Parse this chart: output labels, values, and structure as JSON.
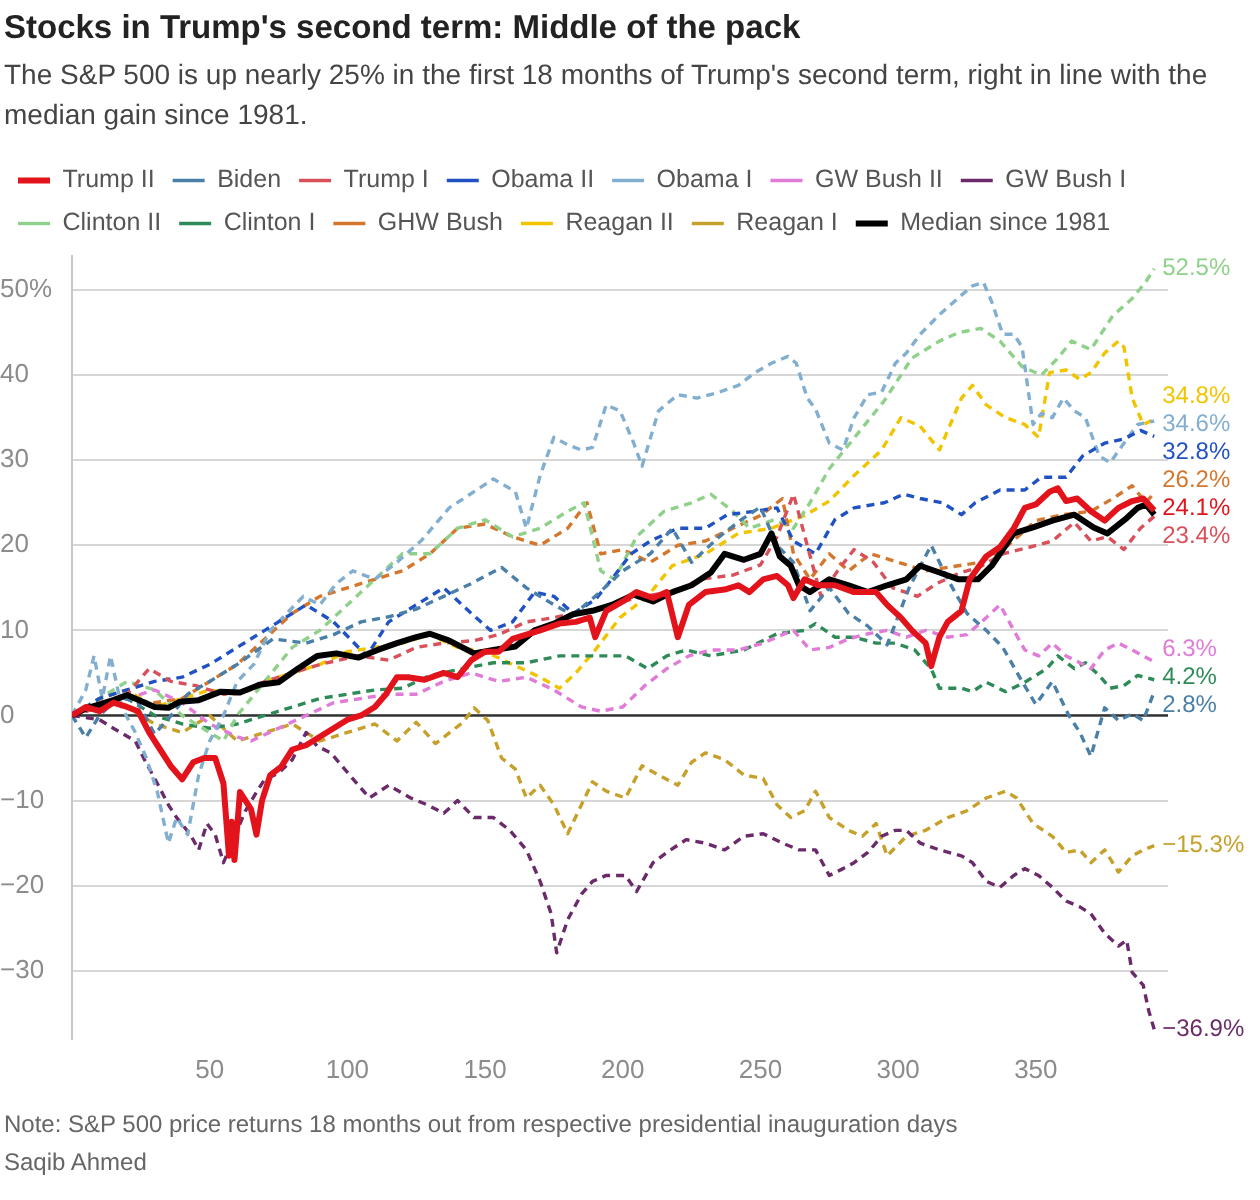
{
  "chart_data": {
    "type": "line",
    "title": "Stocks in Trump's second term: Middle of the pack",
    "subtitle": "The S&P 500 is up nearly 25% in the first 18 months of Trump's second term, right in line with the median gain since 1981.",
    "annotations": [
      "Note: S&P 500 price returns 18 months out from respective presidential inauguration days",
      "Saqib Ahmed"
    ],
    "xlim": [
      0,
      398
    ],
    "xticks": [
      50,
      100,
      150,
      200,
      250,
      300,
      350
    ],
    "ylim": [
      -38,
      54
    ],
    "yticks": [
      {
        "value": 50,
        "label": "50%"
      },
      40,
      30,
      20,
      10,
      0,
      {
        "value": -10,
        "label": "−10"
      },
      {
        "value": -20,
        "label": "−20"
      },
      {
        "value": -30,
        "label": "−30"
      }
    ],
    "grid": "y",
    "legend": "top",
    "line_style": "dashed",
    "ref_lines": [
      {
        "axis": "y",
        "value": 0,
        "color": "#333333"
      }
    ],
    "series": [
      {
        "name": "Trump II",
        "color": "#e3131b",
        "line_style": "solid",
        "x": [
          0,
          5,
          10,
          15,
          20,
          24,
          28,
          32,
          36,
          40,
          44,
          48,
          52,
          55,
          57,
          58,
          59,
          61,
          65,
          67,
          69,
          72,
          76,
          80,
          85,
          90,
          95,
          100,
          105,
          110,
          114,
          118,
          122,
          128,
          135,
          140,
          145,
          150,
          155,
          160,
          165,
          170,
          177,
          183,
          188,
          190,
          194,
          200,
          205,
          211,
          216,
          220,
          224,
          230,
          237,
          242,
          246,
          251,
          256,
          260,
          262,
          266,
          271,
          277,
          284,
          292,
          296,
          301,
          305,
          310,
          312,
          315,
          318,
          323,
          326,
          332,
          337,
          342,
          346,
          350,
          355,
          358,
          361,
          365,
          370,
          375,
          380,
          385,
          389,
          393
        ],
        "values": [
          0,
          1,
          0.5,
          1.5,
          1,
          0.5,
          -2,
          -4,
          -6,
          -7.5,
          -5.5,
          -5,
          -5,
          -8,
          -16.5,
          -12.5,
          -17,
          -9,
          -11,
          -14,
          -10,
          -7,
          -6,
          -4,
          -3.5,
          -2.5,
          -1.5,
          -0.5,
          0,
          1,
          2.5,
          4.5,
          4.5,
          4.2,
          5,
          4.5,
          6.5,
          7.5,
          7.5,
          9,
          9.5,
          10,
          10.8,
          11,
          11.5,
          9.2,
          12.3,
          13.4,
          14.5,
          13.8,
          14.5,
          9.2,
          13,
          14.5,
          14.8,
          15.3,
          14.5,
          16,
          16.4,
          15.3,
          13.8,
          16,
          15.3,
          15.3,
          14.5,
          14.5,
          13,
          11.5,
          10,
          8.5,
          5.8,
          9.2,
          11,
          12.3,
          16,
          18.7,
          19.8,
          22,
          24.4,
          24.8,
          26.3,
          26.7,
          25.2,
          25.5,
          24,
          22.9,
          24.4,
          25.2,
          25.5,
          24.1
        ],
        "value_labels": [
          null,
          null,
          null,
          null,
          null,
          null,
          null,
          null,
          null,
          null,
          null,
          null,
          null,
          null,
          null,
          null,
          null,
          null,
          null,
          null,
          null,
          null,
          null,
          null,
          null,
          null,
          null,
          null,
          null,
          null,
          null,
          null,
          null,
          null,
          null,
          null,
          null,
          null,
          null,
          null,
          null,
          null,
          null,
          null,
          null,
          null,
          null,
          null,
          null,
          null,
          null,
          null,
          null,
          null,
          null,
          null,
          null,
          null,
          null,
          null,
          null,
          null,
          null,
          null,
          null,
          null,
          null,
          null,
          null,
          null,
          null,
          null,
          null,
          null,
          null,
          null,
          null,
          null,
          null,
          null,
          null,
          null,
          null,
          null,
          null,
          null,
          null,
          null,
          null,
          "24.1%"
        ]
      },
      {
        "name": "Biden",
        "color": "#4a7fa8",
        "x": [
          0,
          5,
          10,
          17,
          24,
          30,
          36,
          42,
          50,
          60,
          73,
          85,
          95,
          105,
          115,
          125,
          135,
          145,
          156,
          165,
          175,
          182,
          190,
          200,
          210,
          218,
          225,
          235,
          243,
          250,
          256,
          262,
          268,
          275,
          282,
          289,
          296,
          304,
          312,
          318,
          325,
          332,
          338,
          345,
          350,
          356,
          362,
          366,
          370,
          375,
          380,
          385,
          389,
          393
        ],
        "values": [
          0,
          -2.6,
          0,
          2.2,
          1.5,
          -2.2,
          0,
          2.5,
          4,
          6,
          9,
          8.5,
          9.5,
          11,
          11.6,
          12.5,
          14,
          15.5,
          17.4,
          15,
          13,
          11.8,
          14,
          17,
          19,
          22,
          18,
          21,
          23,
          24.5,
          20,
          18,
          12.3,
          15,
          12,
          10.5,
          8.3,
          15,
          20,
          16,
          12,
          10,
          8,
          4,
          1.3,
          4,
          0,
          -2,
          -4.8,
          0.9,
          -0.6,
          0.2,
          -0.6,
          2.8
        ],
        "value_labels": [
          null,
          null,
          null,
          null,
          null,
          null,
          null,
          null,
          null,
          null,
          null,
          null,
          null,
          null,
          null,
          null,
          null,
          null,
          null,
          null,
          null,
          null,
          null,
          null,
          null,
          null,
          null,
          null,
          null,
          null,
          null,
          null,
          null,
          null,
          null,
          null,
          null,
          null,
          null,
          null,
          null,
          null,
          null,
          null,
          null,
          null,
          null,
          null,
          null,
          null,
          null,
          null,
          null,
          "2.8%"
        ]
      },
      {
        "name": "Trump I",
        "color": "#d9505a",
        "x": [
          0,
          10,
          20,
          28,
          36,
          45,
          55,
          62,
          70,
          80,
          90,
          104,
          115,
          125,
          135,
          146,
          155,
          165,
          175,
          187,
          196,
          207,
          218,
          228,
          240,
          250,
          256,
          262,
          267,
          272,
          278,
          284,
          291,
          298,
          307,
          314,
          322,
          330,
          338,
          348,
          356,
          364,
          370,
          376,
          382,
          388,
          393
        ],
        "values": [
          0,
          1,
          2.5,
          5.5,
          4,
          3.5,
          2.5,
          2.6,
          4,
          5,
          6,
          7,
          6.5,
          8,
          8.5,
          8.8,
          9.5,
          11,
          11.5,
          12.3,
          13,
          14,
          14.5,
          16,
          16.5,
          17.7,
          21,
          26,
          20,
          14,
          17,
          19.5,
          18,
          15,
          14,
          15.5,
          16.7,
          17.5,
          19,
          19.8,
          20.5,
          22.7,
          20.5,
          21,
          19.5,
          22,
          23.4
        ],
        "value_labels": [
          null,
          null,
          null,
          null,
          null,
          null,
          null,
          null,
          null,
          null,
          null,
          null,
          null,
          null,
          null,
          null,
          null,
          null,
          null,
          null,
          null,
          null,
          null,
          null,
          null,
          null,
          null,
          null,
          null,
          null,
          null,
          null,
          null,
          null,
          null,
          null,
          null,
          null,
          null,
          null,
          null,
          null,
          null,
          null,
          null,
          null,
          "23.4%"
        ]
      },
      {
        "name": "Obama II",
        "color": "#2152c4",
        "x": [
          0,
          10,
          20,
          30,
          40,
          50,
          60,
          70,
          80,
          85,
          95,
          107,
          115,
          125,
          135,
          145,
          152,
          160,
          168,
          175,
          182,
          190,
          196,
          203,
          210,
          220,
          230,
          238,
          248,
          256,
          262,
          270,
          277,
          284,
          295,
          302,
          308,
          316,
          323,
          328,
          337,
          346,
          352,
          361,
          367,
          375,
          382,
          388,
          393
        ],
        "values": [
          0,
          2,
          3,
          4,
          4.5,
          6,
          8,
          10,
          12,
          13,
          11,
          7,
          11,
          13,
          15,
          12,
          10,
          11,
          14.5,
          14,
          12,
          13.6,
          16,
          19,
          20.5,
          22,
          22,
          23.6,
          24,
          24.4,
          20.5,
          19,
          23,
          24.4,
          25,
          26,
          25.5,
          25,
          23.6,
          25,
          26.5,
          26.5,
          28,
          28,
          30.5,
          32,
          32.5,
          33.5,
          32.8
        ],
        "value_labels": [
          null,
          null,
          null,
          null,
          null,
          null,
          null,
          null,
          null,
          null,
          null,
          null,
          null,
          null,
          null,
          null,
          null,
          null,
          null,
          null,
          null,
          null,
          null,
          null,
          null,
          null,
          null,
          null,
          null,
          null,
          null,
          null,
          null,
          null,
          null,
          null,
          null,
          null,
          null,
          null,
          null,
          null,
          null,
          null,
          null,
          null,
          null,
          null,
          "32.8%"
        ]
      },
      {
        "name": "Obama I",
        "color": "#82aed0",
        "x": [
          0,
          5,
          8,
          11,
          14,
          18,
          23,
          27,
          31,
          35,
          38,
          42,
          46,
          50,
          55,
          60,
          66,
          72,
          78,
          84,
          90,
          96,
          102,
          110,
          118,
          127,
          137,
          146,
          153,
          161,
          165,
          170,
          175,
          180,
          185,
          189,
          194,
          199,
          204,
          207,
          213,
          220,
          227,
          235,
          242,
          248,
          254,
          260,
          263,
          267,
          270,
          275,
          280,
          284,
          289,
          294,
          299,
          303,
          308,
          315,
          323,
          327,
          331,
          334,
          338,
          342,
          345,
          349,
          352,
          356,
          360,
          364,
          368,
          373,
          377,
          382,
          387,
          393
        ],
        "values": [
          0,
          3,
          7,
          2,
          7,
          1,
          -2,
          -5,
          -9,
          -15,
          -12,
          -14,
          -7,
          -3,
          0,
          4,
          6,
          10,
          12,
          14,
          13,
          15.5,
          17,
          16,
          18,
          20.6,
          24.4,
          26.3,
          27.8,
          26.3,
          22,
          28.2,
          32.7,
          31.8,
          31.2,
          31.5,
          36.5,
          35.8,
          32,
          29.3,
          35.8,
          37.7,
          37.3,
          38,
          38.8,
          40.3,
          41.4,
          42.2,
          41.4,
          37.3,
          36,
          32,
          31.2,
          35,
          37.7,
          38,
          41.4,
          42.6,
          44.8,
          47.1,
          49.4,
          50.5,
          50.9,
          48.6,
          44.8,
          44.8,
          43.3,
          34.2,
          35.5,
          35,
          37.3,
          35.8,
          35,
          30.5,
          29.7,
          32,
          34.2,
          34.6
        ],
        "value_labels": [
          null,
          null,
          null,
          null,
          null,
          null,
          null,
          null,
          null,
          null,
          null,
          null,
          null,
          null,
          null,
          null,
          null,
          null,
          null,
          null,
          null,
          null,
          null,
          null,
          null,
          null,
          null,
          null,
          null,
          null,
          null,
          null,
          null,
          null,
          null,
          null,
          null,
          null,
          null,
          null,
          null,
          null,
          null,
          null,
          null,
          null,
          null,
          null,
          null,
          null,
          null,
          null,
          null,
          null,
          null,
          null,
          null,
          null,
          null,
          null,
          null,
          null,
          null,
          null,
          null,
          null,
          null,
          null,
          null,
          null,
          null,
          null,
          null,
          null,
          null,
          null,
          null,
          "34.6%"
        ]
      },
      {
        "name": "GW Bush II",
        "color": "#e07bd8",
        "x": [
          0,
          10,
          20,
          30,
          40,
          50,
          60,
          65,
          75,
          85,
          95,
          105,
          115,
          125,
          135,
          145,
          155,
          165,
          175,
          185,
          192,
          200,
          208,
          216,
          224,
          232,
          242,
          251,
          258,
          262,
          268,
          275,
          282,
          289,
          296,
          303,
          310,
          318,
          325,
          332,
          337,
          342,
          346,
          351,
          356,
          361,
          366,
          370,
          375,
          380,
          385,
          389,
          393
        ],
        "values": [
          0,
          1,
          2,
          3,
          1.5,
          -1,
          -2.5,
          -3,
          -1.5,
          0,
          1.5,
          2,
          2.5,
          2.5,
          4,
          5,
          4,
          4.5,
          3,
          1,
          0.5,
          1,
          3.5,
          5.5,
          7,
          7.7,
          7.7,
          8.5,
          9.5,
          10,
          7.7,
          8,
          9,
          9.6,
          10,
          9.2,
          10,
          9.2,
          9.5,
          11.5,
          13,
          10,
          7.7,
          7,
          8.5,
          7,
          6.2,
          5.5,
          7.7,
          8.5,
          7.7,
          7,
          6.3
        ],
        "value_labels": [
          null,
          null,
          null,
          null,
          null,
          null,
          null,
          null,
          null,
          null,
          null,
          null,
          null,
          null,
          null,
          null,
          null,
          null,
          null,
          null,
          null,
          null,
          null,
          null,
          null,
          null,
          null,
          null,
          null,
          null,
          null,
          null,
          null,
          null,
          null,
          null,
          null,
          null,
          null,
          null,
          null,
          null,
          null,
          null,
          null,
          null,
          null,
          null,
          null,
          null,
          null,
          null,
          "6.3%"
        ]
      },
      {
        "name": "GW Bush I",
        "color": "#6b2b6b",
        "x": [
          0,
          10,
          15,
          23,
          26,
          31,
          35,
          38,
          43,
          46,
          49,
          52,
          55,
          58,
          63,
          67,
          70,
          75,
          80,
          85,
          89,
          94,
          99,
          104,
          108,
          115,
          123,
          129,
          135,
          140,
          146,
          153,
          159,
          165,
          170,
          174,
          176,
          180,
          185,
          189,
          194,
          201,
          205,
          211,
          216,
          223,
          230,
          237,
          244,
          251,
          258,
          264,
          270,
          275,
          280,
          284,
          289,
          294,
          299,
          303,
          308,
          315,
          323,
          327,
          332,
          337,
          342,
          346,
          351,
          356,
          361,
          366,
          370,
          375,
          380,
          383,
          385,
          389,
          391,
          393
        ],
        "values": [
          0,
          -0.5,
          -1.5,
          -3,
          -5,
          -8,
          -10.5,
          -12,
          -14,
          -15.8,
          -12.7,
          -14,
          -17.3,
          -15,
          -11.2,
          -9,
          -7.5,
          -6.8,
          -5.2,
          -2,
          -3.6,
          -4.4,
          -6.3,
          -8.2,
          -9.7,
          -8.2,
          -9.7,
          -10.5,
          -11.5,
          -10,
          -12,
          -12,
          -13.5,
          -15.8,
          -19.5,
          -23.3,
          -27.9,
          -24,
          -21,
          -19.5,
          -18.8,
          -18.8,
          -20.7,
          -17.3,
          -16.1,
          -14.6,
          -15,
          -15.8,
          -14.2,
          -13.9,
          -15,
          -15.8,
          -15.8,
          -18.8,
          -18,
          -17.3,
          -16.1,
          -14.2,
          -13.5,
          -13.5,
          -15,
          -15.8,
          -16.5,
          -17.3,
          -19.5,
          -20.2,
          -18.8,
          -18,
          -18.8,
          -20.2,
          -21.8,
          -22.5,
          -23.3,
          -25.6,
          -27.1,
          -26.4,
          -30.2,
          -31.7,
          -34.7,
          -36.9
        ],
        "value_labels": [
          null,
          null,
          null,
          null,
          null,
          null,
          null,
          null,
          null,
          null,
          null,
          null,
          null,
          null,
          null,
          null,
          null,
          null,
          null,
          null,
          null,
          null,
          null,
          null,
          null,
          null,
          null,
          null,
          null,
          null,
          null,
          null,
          null,
          null,
          null,
          null,
          null,
          null,
          null,
          null,
          null,
          null,
          null,
          null,
          null,
          null,
          null,
          null,
          null,
          null,
          null,
          null,
          null,
          null,
          null,
          null,
          null,
          null,
          null,
          null,
          null,
          null,
          null,
          null,
          null,
          null,
          null,
          null,
          null,
          null,
          null,
          null,
          null,
          null,
          null,
          null,
          null,
          null,
          null,
          "−36.9%"
        ]
      },
      {
        "name": "Clinton II",
        "color": "#8fd18a",
        "x": [
          0,
          10,
          20,
          30,
          40,
          50,
          55,
          60,
          70,
          80,
          90,
          100,
          110,
          120,
          130,
          140,
          150,
          160,
          170,
          180,
          186,
          192,
          197,
          205,
          215,
          225,
          232,
          240,
          246,
          255,
          262,
          268,
          275,
          285,
          295,
          305,
          315,
          322,
          330,
          337,
          345,
          352,
          358,
          363,
          370,
          378,
          385,
          390,
          393
        ],
        "values": [
          0,
          2,
          4,
          3,
          0,
          -2,
          -3,
          0,
          4,
          8,
          10,
          13,
          16,
          19,
          19,
          22,
          23,
          21,
          22,
          24,
          25,
          17,
          16,
          21,
          24,
          25,
          26,
          24,
          22,
          23,
          22,
          25,
          29,
          33,
          37,
          42,
          44,
          45,
          45.5,
          44,
          41,
          40,
          42,
          44,
          43,
          47,
          49,
          51,
          52.5
        ],
        "value_labels": [
          null,
          null,
          null,
          null,
          null,
          null,
          null,
          null,
          null,
          null,
          null,
          null,
          null,
          null,
          null,
          null,
          null,
          null,
          null,
          null,
          null,
          null,
          null,
          null,
          null,
          null,
          null,
          null,
          null,
          null,
          null,
          null,
          null,
          null,
          null,
          null,
          null,
          null,
          null,
          null,
          null,
          null,
          null,
          null,
          null,
          null,
          null,
          null,
          "52.5%"
        ]
      },
      {
        "name": "Clinton I",
        "color": "#2e8b57",
        "x": [
          0,
          10,
          20,
          30,
          40,
          50,
          60,
          70,
          80,
          90,
          100,
          110,
          120,
          130,
          142,
          153,
          165,
          177,
          189,
          201,
          209,
          216,
          223,
          232,
          244,
          256,
          266,
          270,
          277,
          284,
          292,
          299,
          306,
          312,
          315,
          323,
          327,
          332,
          339,
          346,
          354,
          358,
          364,
          368,
          373,
          377,
          382,
          387,
          393
        ],
        "values": [
          0,
          1,
          2,
          0,
          -1,
          -1.5,
          -1,
          0,
          1,
          2,
          2.5,
          3,
          3.2,
          4.7,
          5.5,
          6.2,
          6.2,
          7,
          7,
          7,
          5.5,
          7,
          7.7,
          7,
          7.7,
          9.6,
          10,
          10.8,
          9.2,
          9.2,
          8.5,
          8.5,
          7.7,
          5.5,
          3.2,
          3.2,
          2.8,
          3.9,
          2.8,
          3.9,
          5.5,
          7,
          5.5,
          6.2,
          4.7,
          3.2,
          3.5,
          4.7,
          4.2
        ],
        "value_labels": [
          null,
          null,
          null,
          null,
          null,
          null,
          null,
          null,
          null,
          null,
          null,
          null,
          null,
          null,
          null,
          null,
          null,
          null,
          null,
          null,
          null,
          null,
          null,
          null,
          null,
          null,
          null,
          null,
          null,
          null,
          null,
          null,
          null,
          null,
          null,
          null,
          null,
          null,
          null,
          null,
          null,
          null,
          null,
          null,
          null,
          null,
          null,
          null,
          "4.2%"
        ]
      },
      {
        "name": "GHW Bush",
        "color": "#d4762c",
        "x": [
          0,
          10,
          20,
          30,
          40,
          50,
          60,
          70,
          80,
          90,
          100,
          110,
          120,
          130,
          140,
          150,
          160,
          170,
          180,
          187,
          192,
          200,
          210,
          220,
          230,
          240,
          250,
          258,
          262,
          268,
          275,
          282,
          290,
          300,
          310,
          320,
          330,
          340,
          350,
          360,
          370,
          378,
          385,
          390,
          393
        ],
        "values": [
          0,
          1,
          2,
          1.5,
          2,
          4,
          6,
          9,
          12,
          14,
          15,
          16,
          17,
          19,
          22,
          22.5,
          21,
          20,
          22,
          25,
          19,
          19.5,
          18,
          20,
          20.5,
          22,
          23.5,
          25.5,
          19,
          16,
          19,
          17,
          19,
          18,
          17,
          17.5,
          18,
          20,
          22.9,
          23.6,
          24,
          25.5,
          27,
          25,
          26.2
        ],
        "value_labels": [
          null,
          null,
          null,
          null,
          null,
          null,
          null,
          null,
          null,
          null,
          null,
          null,
          null,
          null,
          null,
          null,
          null,
          null,
          null,
          null,
          null,
          null,
          null,
          null,
          null,
          null,
          null,
          null,
          null,
          null,
          null,
          null,
          null,
          null,
          null,
          null,
          null,
          null,
          null,
          null,
          null,
          null,
          null,
          null,
          "26.2%"
        ]
      },
      {
        "name": "Reagan II",
        "color": "#f2c400",
        "x": [
          0,
          10,
          20,
          30,
          40,
          50,
          60,
          70,
          80,
          90,
          100,
          110,
          120,
          130,
          140,
          150,
          160,
          170,
          177,
          183,
          190,
          199,
          209,
          218,
          230,
          242,
          254,
          266,
          275,
          284,
          294,
          301,
          308,
          315,
          323,
          327,
          332,
          339,
          346,
          351,
          355,
          361,
          366,
          370,
          375,
          380,
          382,
          385,
          389,
          393
        ],
        "values": [
          0,
          2,
          3,
          1,
          2,
          3,
          2.5,
          4,
          5,
          6,
          7.5,
          8,
          8.5,
          9.5,
          8,
          7.5,
          6,
          4.5,
          3.2,
          5,
          7.7,
          11.5,
          14,
          17.6,
          19,
          21.4,
          22,
          23.5,
          25.2,
          28.2,
          31.2,
          35,
          34,
          31.2,
          37.3,
          38.8,
          36.5,
          35,
          34.2,
          32.7,
          40.3,
          40.6,
          39.5,
          40.3,
          42.6,
          44,
          43.3,
          37.3,
          34.2,
          34.8
        ],
        "value_labels": [
          null,
          null,
          null,
          null,
          null,
          null,
          null,
          null,
          null,
          null,
          null,
          null,
          null,
          null,
          null,
          null,
          null,
          null,
          null,
          null,
          null,
          null,
          null,
          null,
          null,
          null,
          null,
          null,
          null,
          null,
          null,
          null,
          null,
          null,
          null,
          null,
          null,
          null,
          null,
          null,
          null,
          null,
          null,
          null,
          null,
          null,
          null,
          null,
          null,
          "34.8%"
        ]
      },
      {
        "name": "Reagan I",
        "color": "#c6a02a",
        "x": [
          0,
          10,
          20,
          30,
          40,
          50,
          60,
          70,
          80,
          90,
          100,
          110,
          118,
          125,
          132,
          142,
          146,
          151,
          156,
          161,
          165,
          170,
          175,
          180,
          185,
          189,
          194,
          201,
          207,
          213,
          220,
          225,
          230,
          237,
          244,
          251,
          256,
          261,
          266,
          270,
          275,
          282,
          287,
          292,
          296,
          303,
          310,
          318,
          325,
          332,
          339,
          343,
          349,
          356,
          361,
          366,
          370,
          375,
          380,
          385,
          389,
          393
        ],
        "values": [
          0,
          2,
          1,
          -1,
          -2,
          0,
          -3,
          -2,
          -1,
          -3,
          -2,
          -1,
          -3,
          -0.8,
          -3.3,
          -0.8,
          0.9,
          -0.6,
          -5,
          -6.3,
          -9.7,
          -8.2,
          -10.5,
          -13.9,
          -10.5,
          -7.8,
          -8.9,
          -9.7,
          -5.9,
          -7,
          -8.2,
          -5.5,
          -4.4,
          -5.2,
          -7,
          -7.4,
          -10.5,
          -12,
          -11.2,
          -8.9,
          -12,
          -13.5,
          -14.2,
          -12.7,
          -16.5,
          -14.2,
          -13.5,
          -12,
          -11.2,
          -9.7,
          -8.9,
          -9.7,
          -12.7,
          -14.2,
          -16.1,
          -15.8,
          -17.3,
          -15.8,
          -18.4,
          -16.5,
          -15.8,
          -15.3
        ],
        "value_labels": [
          null,
          null,
          null,
          null,
          null,
          null,
          null,
          null,
          null,
          null,
          null,
          null,
          null,
          null,
          null,
          null,
          null,
          null,
          null,
          null,
          null,
          null,
          null,
          null,
          null,
          null,
          null,
          null,
          null,
          null,
          null,
          null,
          null,
          null,
          null,
          null,
          null,
          null,
          null,
          null,
          null,
          null,
          null,
          null,
          null,
          null,
          null,
          null,
          null,
          null,
          null,
          null,
          null,
          null,
          null,
          null,
          null,
          null,
          null,
          null,
          null,
          "−15.3%"
        ]
      },
      {
        "name": "Median since 1981",
        "color": "#000000",
        "line_style": "solid",
        "x": [
          0,
          5,
          10,
          15,
          20,
          25,
          30,
          35,
          39,
          46,
          54,
          61,
          68,
          75,
          82,
          89,
          96,
          104,
          111,
          118,
          125,
          130,
          137,
          146,
          153,
          161,
          168,
          175,
          182,
          189,
          196,
          204,
          211,
          218,
          225,
          232,
          237,
          244,
          250,
          254,
          257,
          261,
          264,
          268,
          275,
          282,
          289,
          296,
          303,
          308,
          315,
          322,
          329,
          334,
          342,
          349,
          356,
          364,
          371,
          376,
          383,
          387,
          390,
          393
        ],
        "values": [
          0,
          0.8,
          1.3,
          1.8,
          2.4,
          1.7,
          1,
          0.9,
          1.6,
          1.8,
          2.8,
          2.7,
          3.6,
          3.9,
          5.5,
          7,
          7.3,
          6.8,
          7.7,
          8.5,
          9.2,
          9.6,
          8.8,
          7.3,
          7.7,
          8.1,
          10,
          10.8,
          11.9,
          12.3,
          13,
          14.2,
          13.4,
          14.5,
          15.3,
          16.8,
          19,
          18.3,
          19,
          21.4,
          18.7,
          17.6,
          15.3,
          14.5,
          16,
          15.3,
          14.5,
          15.3,
          16,
          17.6,
          16.8,
          16,
          16,
          17.6,
          21.4,
          22.1,
          22.9,
          23.6,
          22.1,
          21.4,
          23.2,
          24.4,
          24.8,
          23.6
        ]
      }
    ]
  }
}
